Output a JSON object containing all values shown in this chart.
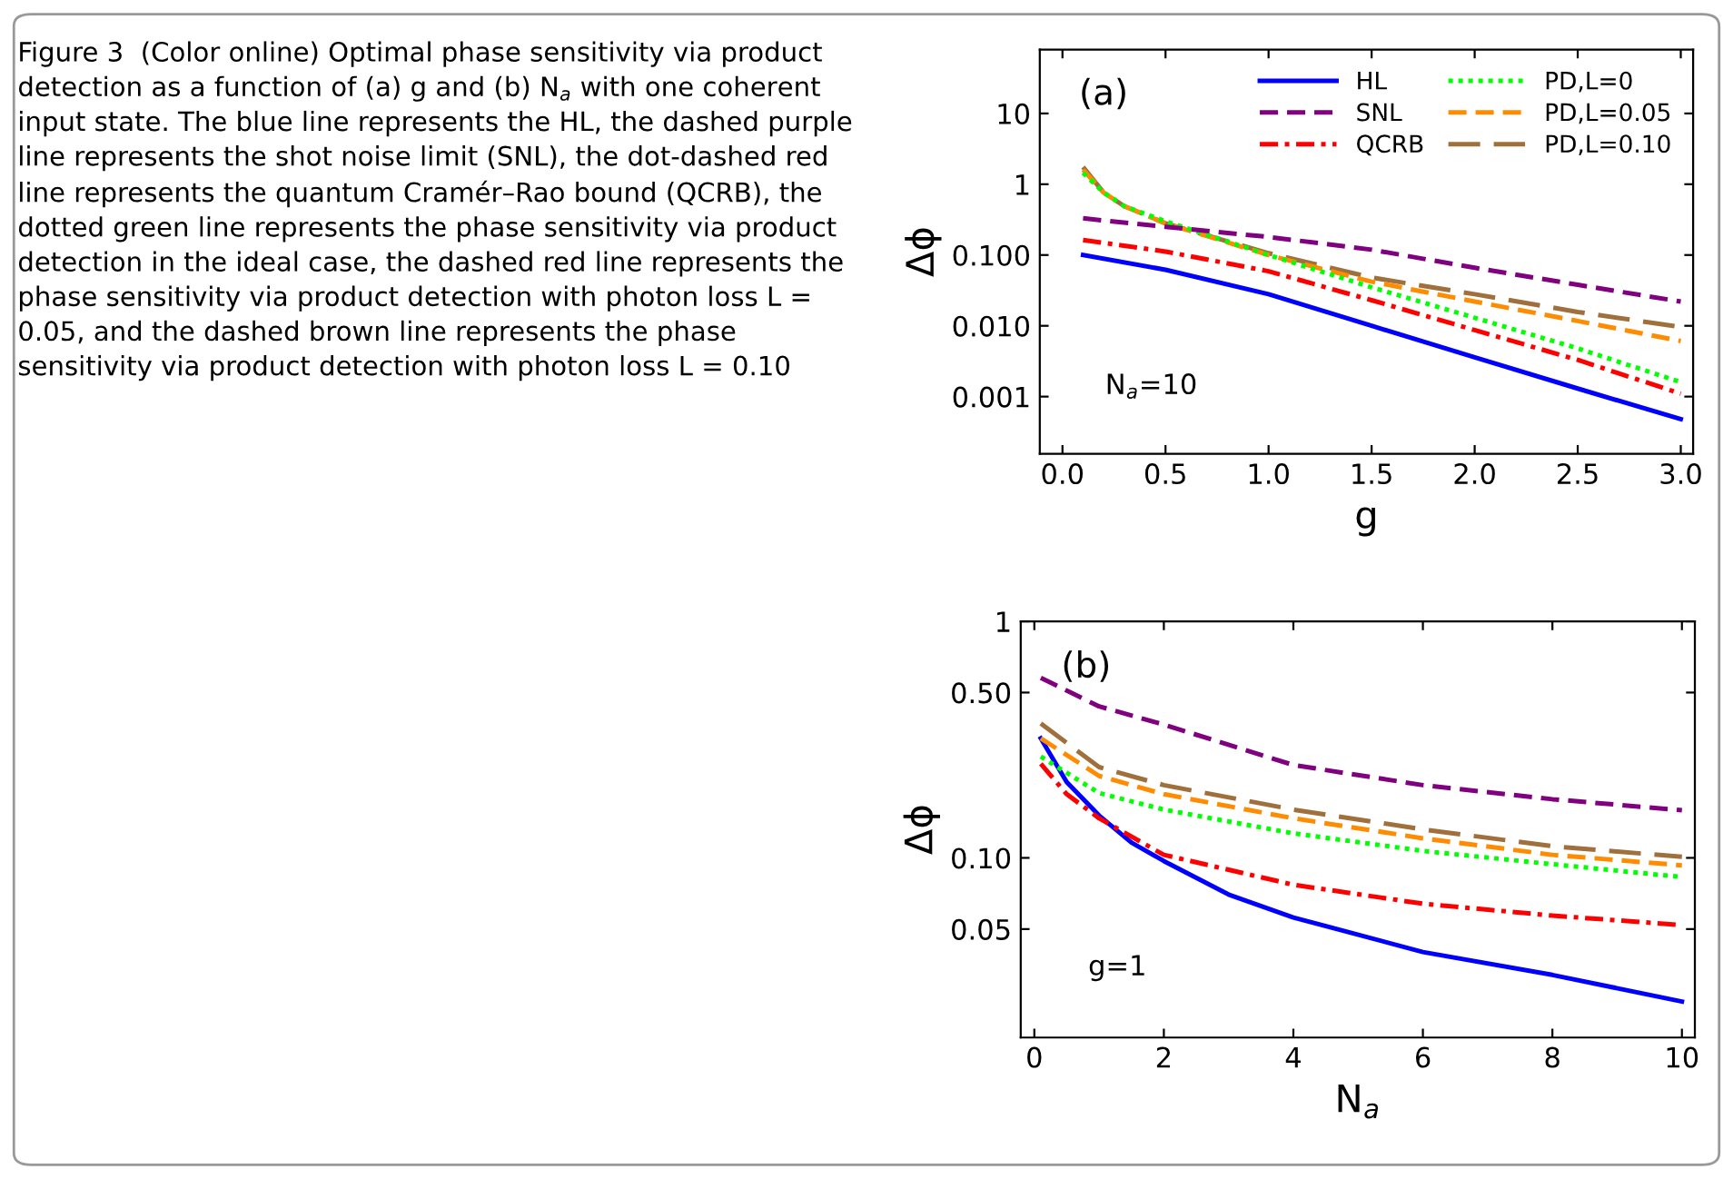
{
  "chart_data": [
    {
      "type": "line",
      "xlabel": "g",
      "ylabel": "Δϕ",
      "log": "y",
      "xlim": [
        -0.11,
        3.06
      ],
      "ylim": [
        0.000155,
        80
      ],
      "xticks": [
        {
          "value": 0,
          "label": "0.0"
        },
        0.5,
        {
          "value": 1,
          "label": "1.0"
        },
        1.5,
        {
          "value": 2,
          "label": "2.0"
        },
        2.5,
        {
          "value": 3,
          "label": "3.0"
        }
      ],
      "yticks": [
        {
          "value": 0.001,
          "label": "0.001"
        },
        {
          "value": 0.01,
          "label": "0.010"
        },
        {
          "value": 0.1,
          "label": "0.100"
        },
        1,
        10
      ],
      "grid": false,
      "legend": "top right",
      "annotations": [
        "(a)",
        "N$_{a}$=10",
        "Figure 3  (Color online) Optimal phase sensitivity via product detection as a function of (a) g and (b) N$_{a}$ with one coherent input state. The blue line represents the HL, the dashed purple line represents the shot noise limit (SNL), the dot-dashed red line represents the quantum Cramér–Rao bound (QCRB), the dotted green line represents the phase sensitivity via product detection in the ideal case, the dashed red line represents the phase sensitivity via product detection with photon loss L = 0.05, and the dashed brown line represents the phase sensitivity via product detection with photon loss L = 0.10"
      ],
      "x": [
        0.1,
        0.5,
        1.0,
        1.5,
        2.0,
        2.5,
        3.0
      ],
      "series": [
        {
          "name": "HL",
          "color": "#0000ff",
          "line_style": "solid",
          "values": [
            0.1,
            0.062,
            0.028,
            0.01,
            0.0036,
            0.0013,
            0.00048
          ]
        },
        {
          "name": "SNL",
          "color": "#800080",
          "line_style": "dashed",
          "values": [
            0.33,
            0.25,
            0.18,
            0.119,
            0.066,
            0.038,
            0.022
          ]
        },
        {
          "name": "QCRB",
          "color": "#ff0000",
          "line_style": "dashdot",
          "values": [
            0.163,
            0.112,
            0.059,
            0.023,
            0.0087,
            0.0033,
            0.0011
          ]
        },
        {
          "name": "PD,L=0",
          "color": "#00ff00",
          "line_style": "dotted",
          "x": [
            0.1,
            0.2,
            0.3,
            0.5,
            1.0,
            1.5,
            2.0,
            2.5,
            3.0
          ],
          "values": [
            1.45,
            0.76,
            0.49,
            0.3,
            0.1,
            0.035,
            0.013,
            0.0048,
            0.0016
          ]
        },
        {
          "name": "PD,L=0.05",
          "color": "#ff8c00",
          "line_style": "dashed",
          "x": [
            0.1,
            0.2,
            0.3,
            0.5,
            1.0,
            1.5,
            2.0,
            2.5,
            3.0
          ],
          "values": [
            1.6,
            0.76,
            0.49,
            0.28,
            0.1,
            0.042,
            0.022,
            0.0117,
            0.0061
          ]
        },
        {
          "name": "PD,L=0.10",
          "color": "#a0703c",
          "line_style": "longdashed",
          "x": [
            0.1,
            0.2,
            0.3,
            0.5,
            1.0,
            1.5,
            2.0,
            2.5,
            3.0
          ],
          "values": [
            1.75,
            0.76,
            0.49,
            0.28,
            0.106,
            0.048,
            0.028,
            0.0157,
            0.0096
          ]
        }
      ]
    },
    {
      "type": "line",
      "xlabel": "N$_{a}$",
      "ylabel": "Δϕ",
      "log": "y",
      "xlim": [
        -0.21,
        10.2
      ],
      "ylim": [
        0.0174,
        1
      ],
      "xticks": [
        0,
        2,
        4,
        6,
        8,
        10
      ],
      "yticks": [
        {
          "value": 0.05,
          "label": "0.05"
        },
        {
          "value": 0.1,
          "label": "0.10"
        },
        {
          "value": 0.5,
          "label": "0.50"
        },
        1
      ],
      "grid": false,
      "legend": false,
      "annotations": [
        "(b)",
        "g=1"
      ],
      "x": [
        0.1,
        0.5,
        1,
        1.5,
        2,
        3,
        4,
        6,
        8,
        10
      ],
      "series": [
        {
          "color": "#800080",
          "line_style": "dashed",
          "x": [
            0.1,
            1,
            2,
            4,
            6,
            8,
            10
          ],
          "values": [
            0.577,
            0.437,
            0.366,
            0.247,
            0.203,
            0.177,
            0.159
          ]
        },
        {
          "color": "#ff8c00",
          "line_style": "dashed",
          "x": [
            0.1,
            1,
            2,
            4,
            6,
            8,
            10
          ],
          "values": [
            0.32,
            0.222,
            0.186,
            0.147,
            0.121,
            0.103,
            0.093
          ]
        },
        {
          "color": "#a0703c",
          "line_style": "longdashed",
          "x": [
            0.1,
            1,
            2,
            4,
            6,
            8,
            10
          ],
          "values": [
            0.37,
            0.242,
            0.203,
            0.16,
            0.132,
            0.112,
            0.101
          ]
        },
        {
          "color": "#00ff00",
          "line_style": "dotted",
          "x": [
            0.1,
            1,
            2,
            4,
            6,
            8,
            10
          ],
          "values": [
            0.268,
            0.188,
            0.16,
            0.127,
            0.107,
            0.094,
            0.083
          ]
        },
        {
          "color": "#ff0000",
          "line_style": "dashdot",
          "x": [
            0.1,
            0.5,
            1,
            2,
            4,
            6,
            8,
            10
          ],
          "values": [
            0.25,
            0.186,
            0.147,
            0.103,
            0.077,
            0.064,
            0.057,
            0.052
          ]
        },
        {
          "color": "#0000ff",
          "line_style": "solid",
          "values": [
            0.32,
            0.209,
            0.151,
            0.116,
            0.097,
            0.07,
            0.056,
            0.04,
            0.032,
            0.0247
          ]
        }
      ]
    }
  ]
}
